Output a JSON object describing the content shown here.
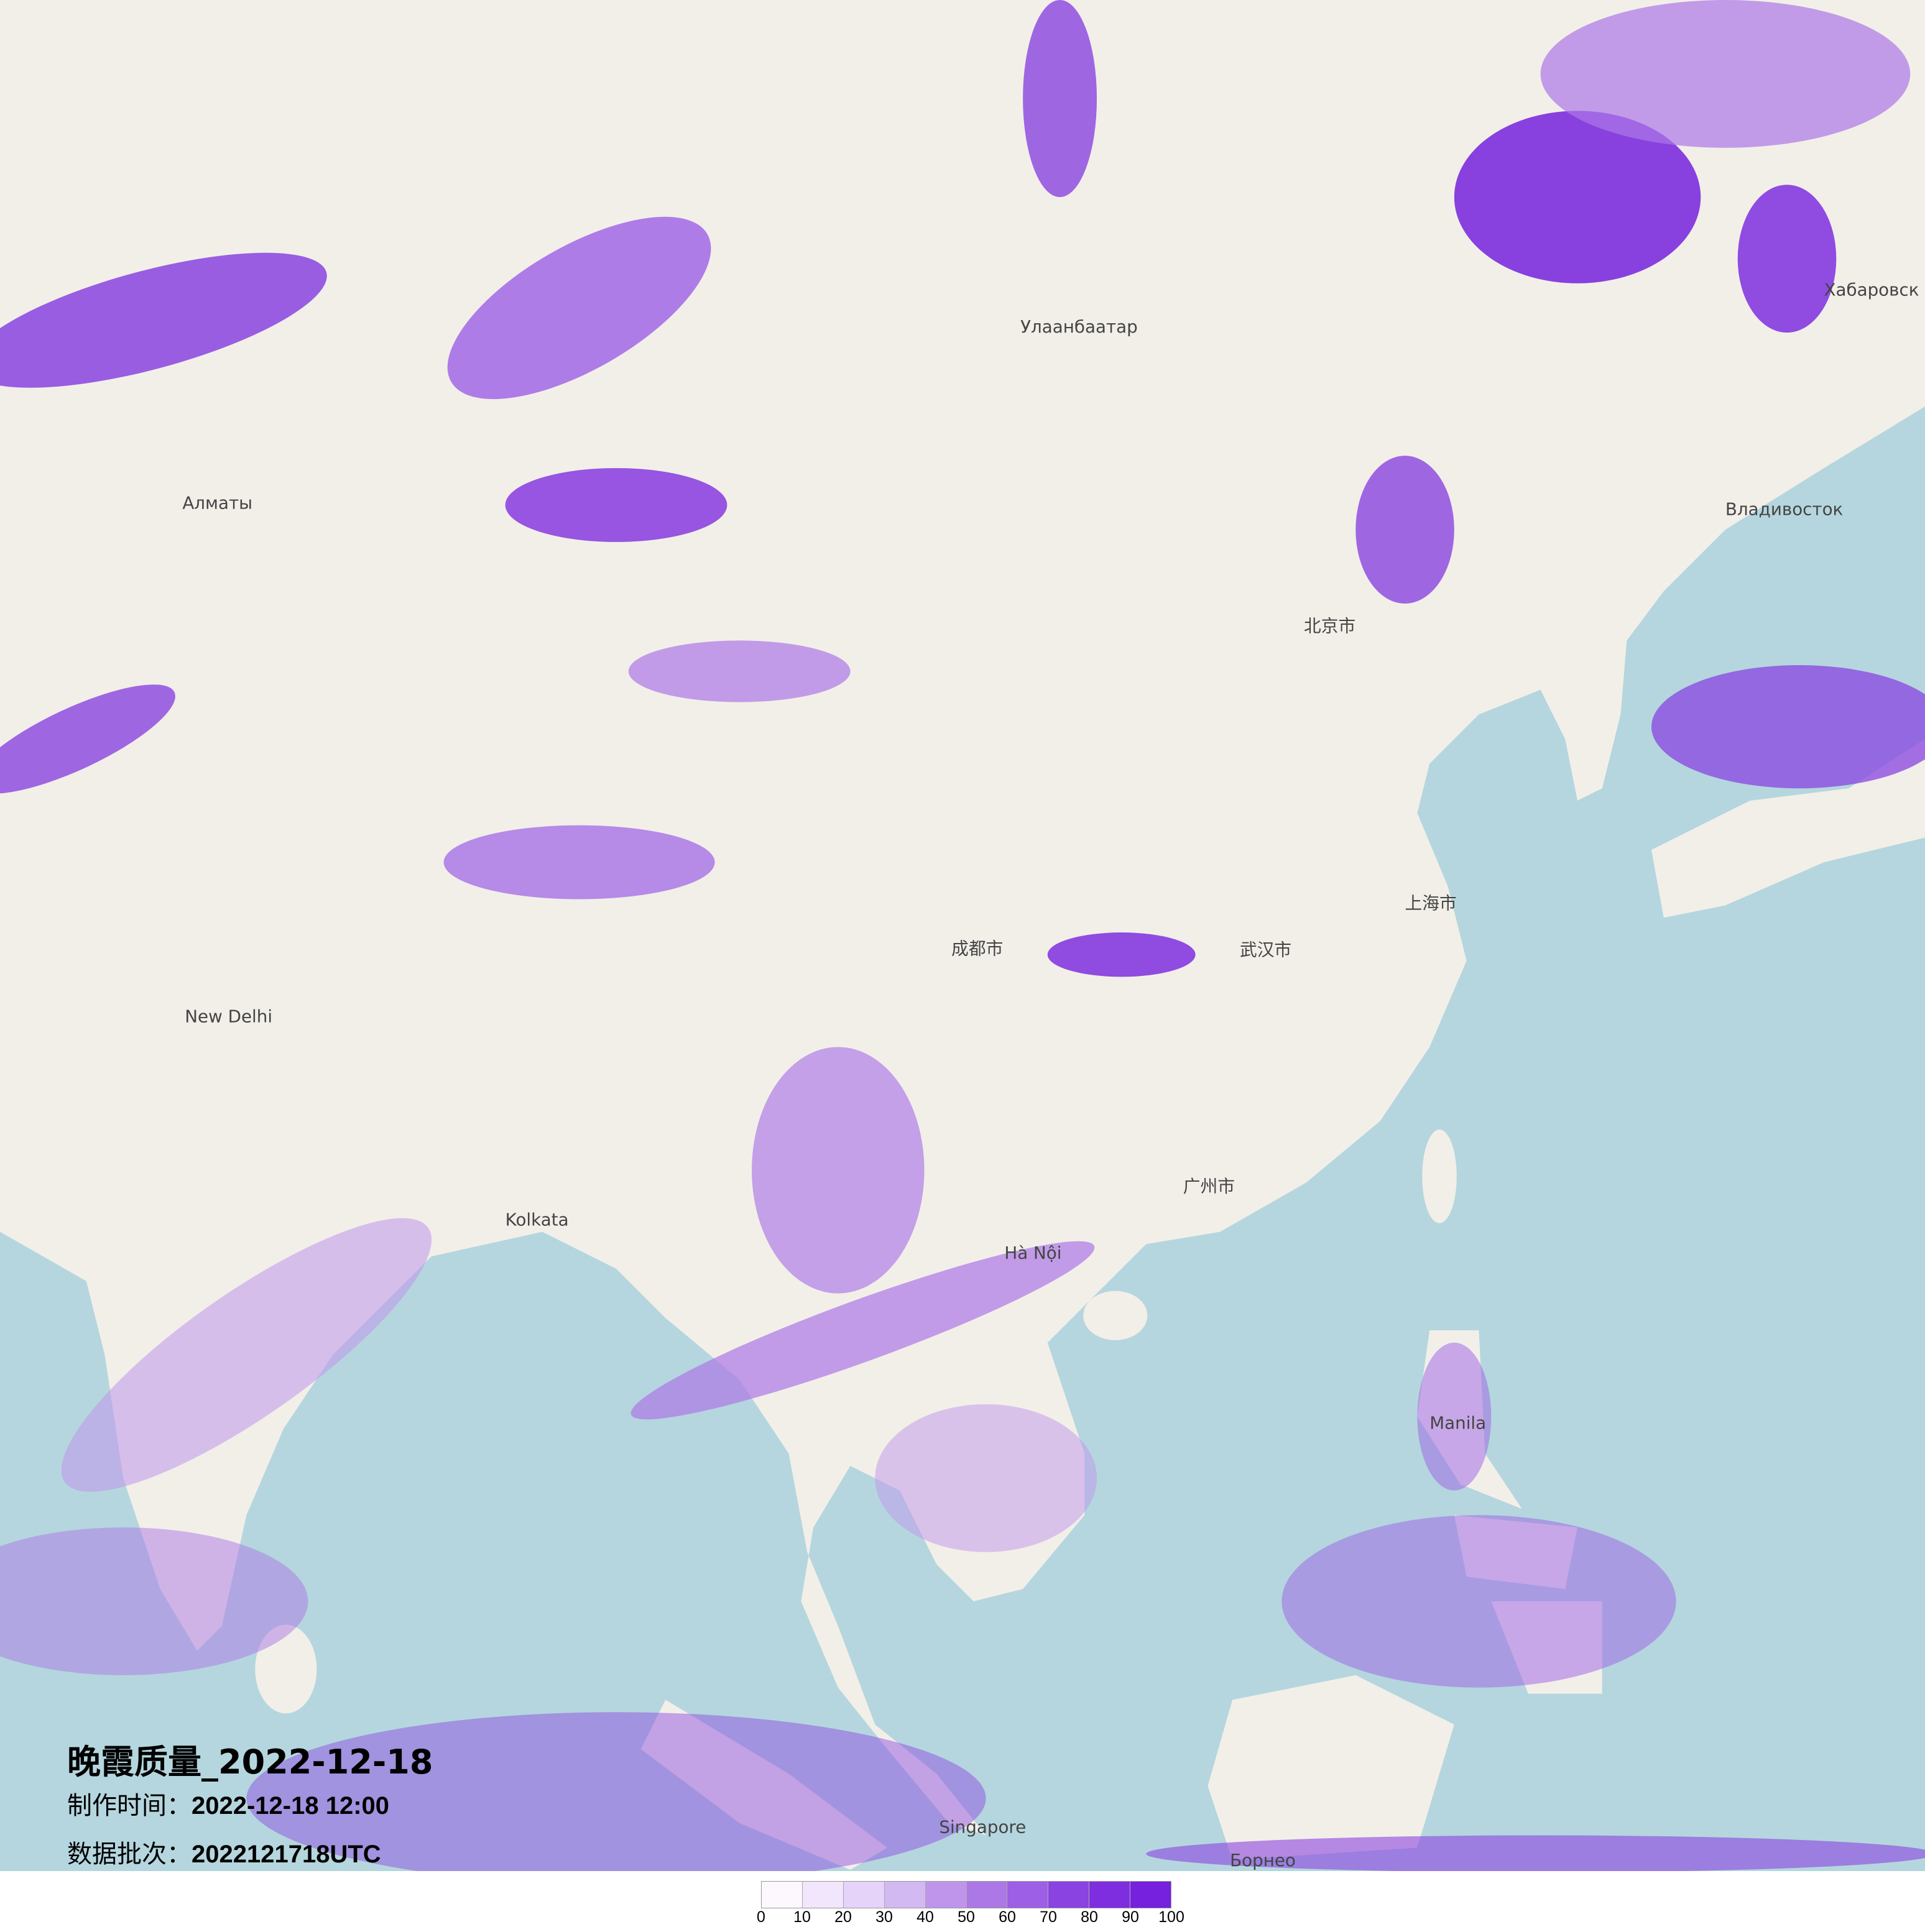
{
  "title": {
    "main": "晚霞质量_2022-12-18",
    "made_label": "制作时间：",
    "made_value": "2022-12-18 12:00",
    "batch_label": "数据批次：",
    "batch_value": "2022121718UTC"
  },
  "map": {
    "land_color": "#f2efe9",
    "sea_color": "#b5d6de",
    "places": [
      "Улаанбаатар",
      "北京市",
      "上海市",
      "武汉市",
      "成都市",
      "广州市",
      "Hà Nội",
      "New Delhi",
      "Kolkata",
      "Singapore",
      "Manila",
      "Хабаровск",
      "Владивосток",
      "Алматы",
      "Борнео"
    ]
  },
  "legend": {
    "ticks": [
      "0",
      "10",
      "20",
      "30",
      "40",
      "50",
      "60",
      "70",
      "80",
      "90",
      "100"
    ],
    "colors": [
      "#fcf8fd",
      "#f1e6fb",
      "#e5d3fa",
      "#d3b9f1",
      "#bf95ec",
      "#ac78e5",
      "#9c5fe6",
      "#8a43e0",
      "#7f2edf",
      "#7521dd"
    ]
  }
}
